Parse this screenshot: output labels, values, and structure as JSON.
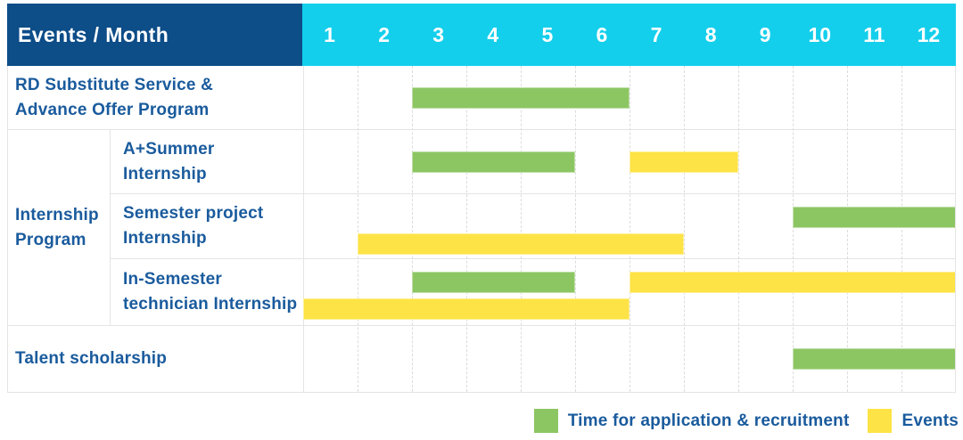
{
  "colors": {
    "header_navy": "#0D4D88",
    "header_cyan": "#14CFEC",
    "application_green": "#8CC663",
    "event_yellow": "#FDE345",
    "label_blue": "#1A5B9D",
    "grid_gray": "#E4E4E4"
  },
  "header": {
    "label": "Events / Month",
    "months": [
      "1",
      "2",
      "3",
      "4",
      "5",
      "6",
      "7",
      "8",
      "9",
      "10",
      "11",
      "12"
    ]
  },
  "row_labels": {
    "rd": "RD Substitute Service &\nAdvance Offer Program",
    "internship_group": "Internship\nProgram",
    "a_summer": "A+Summer\nInternship",
    "semester_project": "Semester project\nInternship",
    "in_semester": "In-Semester\ntechnician Internship",
    "talent": "Talent scholarship"
  },
  "legend": {
    "application": "Time for application & recruitment",
    "events": "Events"
  },
  "chart_data": {
    "type": "bar",
    "subtype": "gantt-schedule",
    "title": "Events / Month",
    "x_unit": "month",
    "x_ticks": [
      1,
      2,
      3,
      4,
      5,
      6,
      7,
      8,
      9,
      10,
      11,
      12
    ],
    "x_range": [
      1,
      12
    ],
    "grid": "dashed-vertical-month-lines",
    "legend_position": "bottom-right",
    "legend": [
      {
        "key": "application",
        "name": "Time for application & recruitment",
        "color": "#8CC663"
      },
      {
        "key": "event",
        "name": "Events",
        "color": "#FDE345"
      }
    ],
    "rows": [
      {
        "label": "RD Substitute Service & Advance Offer Program",
        "group": null,
        "bars": [
          {
            "type": "application",
            "start_month": 3,
            "end_month": 6,
            "lane": "middle"
          }
        ]
      },
      {
        "label": "A+Summer Internship",
        "group": "Internship Program",
        "bars": [
          {
            "type": "application",
            "start_month": 3,
            "end_month": 5,
            "lane": "middle"
          },
          {
            "type": "event",
            "start_month": 7,
            "end_month": 8,
            "lane": "middle"
          }
        ]
      },
      {
        "label": "Semester project Internship",
        "group": "Internship Program",
        "bars": [
          {
            "type": "application",
            "start_month": 10,
            "end_month": 12,
            "lane": "top"
          },
          {
            "type": "event",
            "start_month": 2,
            "end_month": 7,
            "lane": "bottom"
          }
        ]
      },
      {
        "label": "In-Semester technician Internship",
        "group": "Internship Program",
        "bars": [
          {
            "type": "application",
            "start_month": 3,
            "end_month": 5,
            "lane": "top"
          },
          {
            "type": "event",
            "start_month": 7,
            "end_month": 12,
            "lane": "top"
          },
          {
            "type": "event",
            "start_month": 1,
            "end_month": 6,
            "lane": "bottom"
          }
        ]
      },
      {
        "label": "Talent scholarship",
        "group": null,
        "bars": [
          {
            "type": "application",
            "start_month": 10,
            "end_month": 12,
            "lane": "middle"
          }
        ]
      }
    ]
  }
}
